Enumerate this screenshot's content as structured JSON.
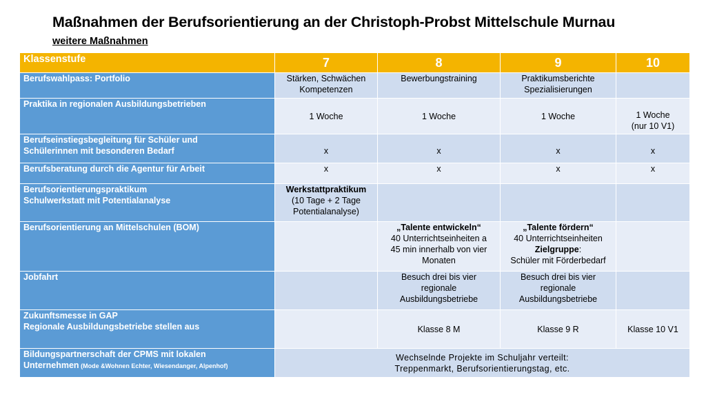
{
  "title": "Maßnahmen der Berufsorientierung an der Christoph-Probst Mittelschule Murnau",
  "subtitle": "weitere Maßnahmen",
  "header": {
    "label": "Klassenstufe",
    "grades": [
      "7",
      "8",
      "9",
      "10"
    ]
  },
  "rows": [
    {
      "label": "Berufswahlpass: Portfolio",
      "c7": [
        "Stärken, Schwächen",
        "Kompetenzen"
      ],
      "c8": [
        "Bewerbungstraining"
      ],
      "c9": [
        "Praktikumsberichte",
        "Spezialisierungen"
      ],
      "c10": []
    },
    {
      "label": "Praktika in regionalen Ausbildungsbetrieben",
      "c7": [
        "1 Woche"
      ],
      "c8": [
        "1 Woche"
      ],
      "c9": [
        "1 Woche"
      ],
      "c10": [
        "1 Woche",
        "(nur 10 V1)"
      ]
    },
    {
      "label_lines": [
        "Berufseinstiegsbegleitung für Schüler und",
        "Schülerinnen mit besonderen Bedarf"
      ],
      "c7": "x",
      "c8": "x",
      "c9": "x",
      "c10": "x"
    },
    {
      "label": "Berufsberatung durch die Agentur für Arbeit",
      "c7": "x",
      "c8": "x",
      "c9": "x",
      "c10": "x"
    },
    {
      "label_lines": [
        "Berufsorientierungspraktikum",
        "Schulwerkstatt  mit Potentialanalyse"
      ],
      "c7_bold": "Werkstattpraktikum",
      "c7": [
        "(10 Tage + 2 Tage",
        "Potentialanalyse)"
      ]
    },
    {
      "label": "Berufsorientierung an Mittelschulen (BOM)",
      "c8_bold": "„Talente entwickeln“",
      "c8": [
        "40 Unterrichtseinheiten a",
        "45 min innerhalb von vier",
        "Monaten"
      ],
      "c9_bold": "„Talente fördern“",
      "c9_line1": "40 Unterrichtseinheiten",
      "c9_bold2": "Zielgruppe",
      "c9_bold2_suffix": ":",
      "c9_line3": "Schüler mit Förderbedarf"
    },
    {
      "label": "Jobfahrt",
      "c8": [
        "Besuch drei bis vier",
        "regionale",
        "Ausbildungsbetriebe"
      ],
      "c9": [
        "Besuch drei bis vier",
        "regionale",
        "Ausbildungsbetriebe"
      ]
    },
    {
      "label_lines": [
        "Zukunftsmesse in GAP",
        "Regionale Ausbildungsbetriebe stellen aus"
      ],
      "c8": "Klasse 8 M",
      "c9": "Klasse 9 R",
      "c10": "Klasse 10 V1"
    },
    {
      "label_line1": "Bildungspartnerschaft der CPMS mit lokalen",
      "label_line2": "Unternehmen",
      "label_small": " (Mode &Wohnen Echter, Wiesendanger, Alpenhof)",
      "merged": [
        "Wechselnde  Projekte  im  Schuljahr  verteilt:",
        "Treppenmarkt,  Berufsorientierungstag,  etc."
      ]
    }
  ],
  "colors": {
    "header": "#f4b400",
    "label_column": "#5b9bd5",
    "row_dark": "#cfdcef",
    "row_light": "#e7edf7"
  }
}
